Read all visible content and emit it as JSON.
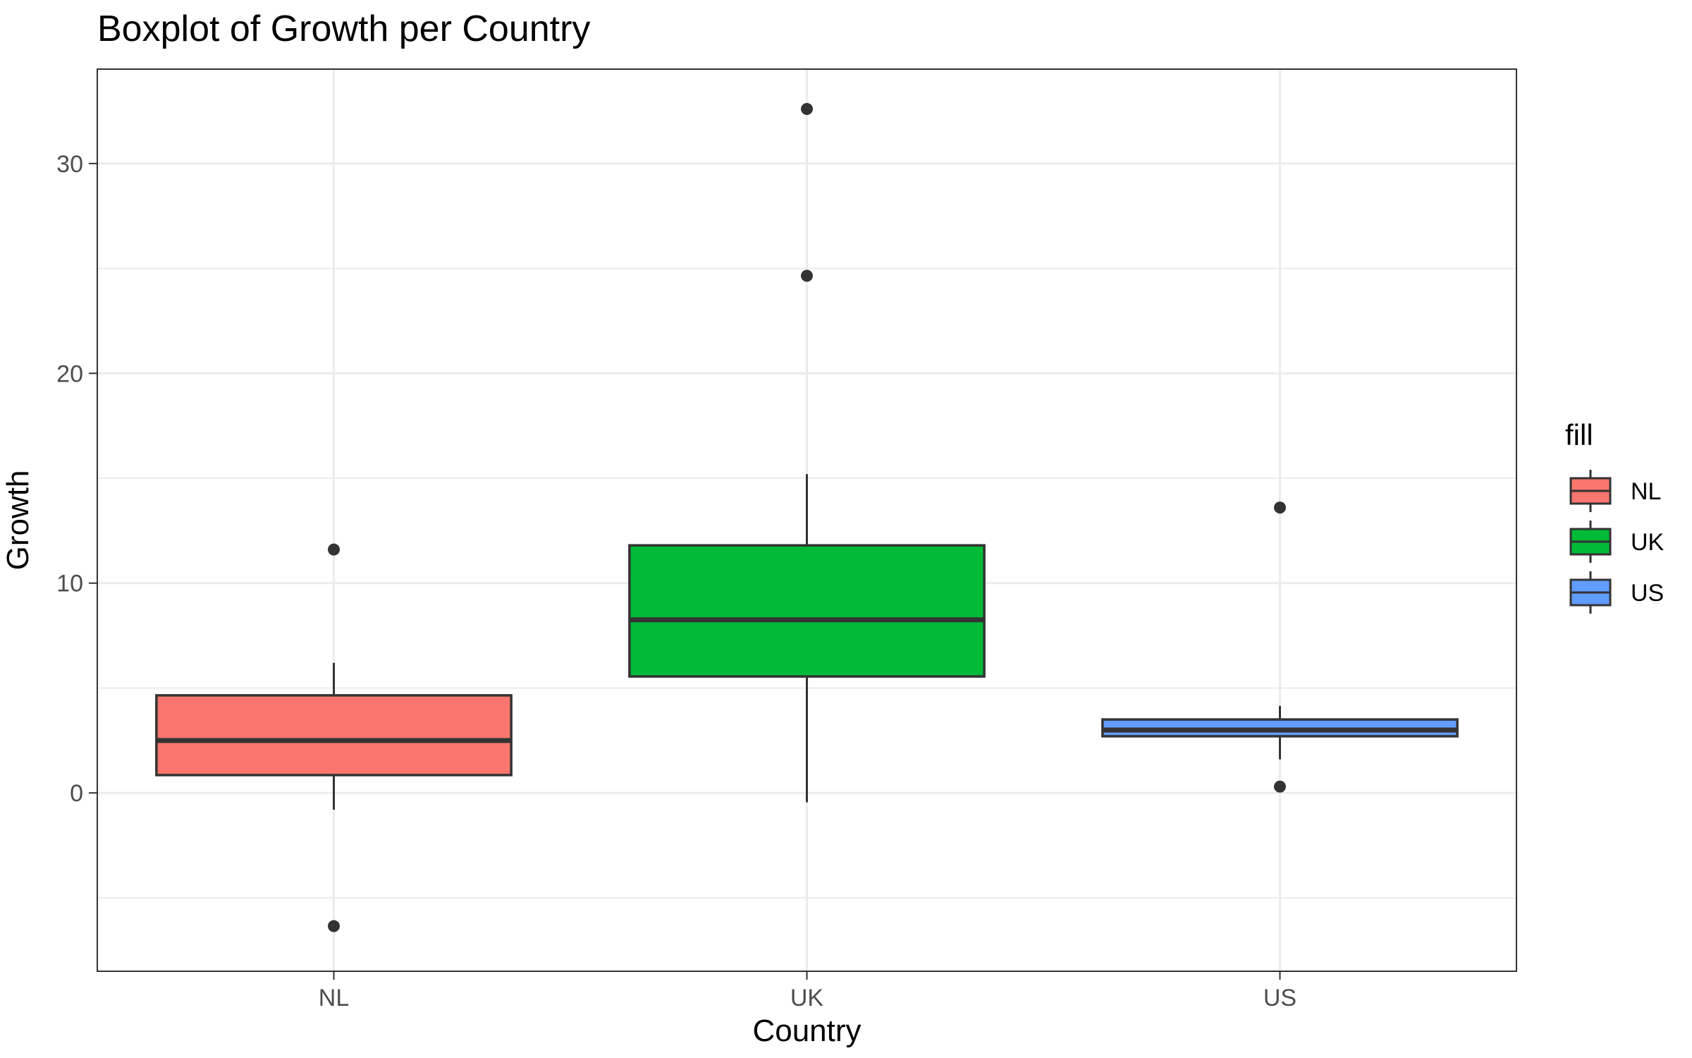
{
  "chart_data": {
    "type": "boxplot",
    "title": "Boxplot of Growth per Country",
    "xlabel": "Country",
    "ylabel": "Growth",
    "categories": [
      "NL",
      "UK",
      "US"
    ],
    "ylim": [
      -8.5,
      34.5
    ],
    "yticks": [
      0,
      10,
      20,
      30
    ],
    "ytick_labels": [
      "0",
      "10",
      "20",
      "30"
    ],
    "grid": true,
    "legend": {
      "title": "fill",
      "position": "right",
      "items": [
        "NL",
        "UK",
        "US"
      ]
    },
    "colors": {
      "NL": "#F8766D",
      "UK": "#00BA38",
      "US": "#619CFF",
      "outline": "#333333",
      "panel_border": "#333333",
      "grid": "#ebebeb"
    },
    "series": [
      {
        "category": "NL",
        "min": -0.8,
        "q1": 0.85,
        "median": 2.5,
        "q3": 4.65,
        "max": 6.2,
        "outliers": [
          11.6,
          -6.35
        ]
      },
      {
        "category": "UK",
        "min": -0.45,
        "q1": 5.55,
        "median": 8.25,
        "q3": 11.8,
        "max": 15.2,
        "outliers": [
          32.6,
          24.65
        ]
      },
      {
        "category": "US",
        "min": 1.6,
        "q1": 2.7,
        "median": 3.0,
        "q3": 3.5,
        "max": 4.15,
        "outliers": [
          13.6,
          0.3
        ]
      }
    ]
  }
}
